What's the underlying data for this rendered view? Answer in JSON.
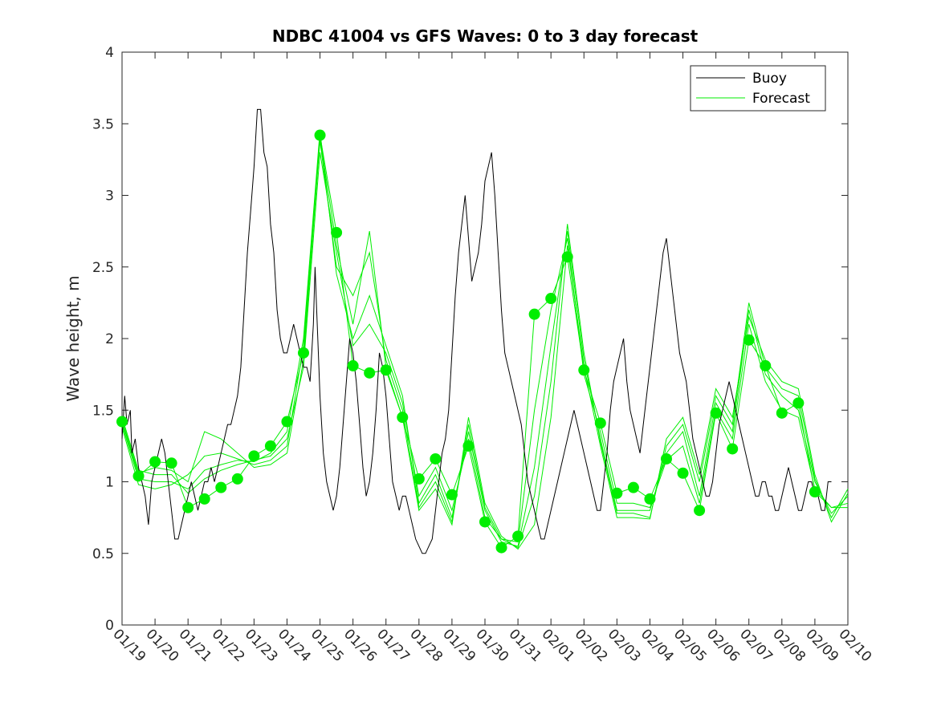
{
  "chart_data": {
    "type": "line",
    "title": "NDBC 41004 vs GFS Waves: 0 to 3 day forecast",
    "xlabel": "",
    "ylabel": "Wave height, m",
    "ylim": [
      0,
      4
    ],
    "xlim": [
      0,
      22
    ],
    "yticks": [
      0,
      0.5,
      1,
      1.5,
      2,
      2.5,
      3,
      3.5,
      4
    ],
    "ytick_labels": [
      "0",
      "0.5",
      "1",
      "1.5",
      "2",
      "2.5",
      "3",
      "3.5",
      "4"
    ],
    "xtick_labels": [
      "01/19",
      "01/20",
      "01/21",
      "01/22",
      "01/23",
      "01/24",
      "01/25",
      "01/26",
      "01/27",
      "01/28",
      "01/29",
      "01/30",
      "01/31",
      "02/01",
      "02/02",
      "02/03",
      "02/04",
      "02/05",
      "02/06",
      "02/07",
      "02/08",
      "02/09",
      "02/10"
    ],
    "legend": {
      "position": "top-right",
      "entries": [
        {
          "label": "Buoy",
          "color": "#000000"
        },
        {
          "label": "Forecast",
          "color": "#00ee00"
        }
      ]
    },
    "colors": {
      "buoy": "#000000",
      "forecast": "#00ee00",
      "marker": "#00ee00"
    },
    "buoy": {
      "x": [
        0,
        0.08,
        0.15,
        0.25,
        0.3,
        0.4,
        0.5,
        0.6,
        0.7,
        0.8,
        0.9,
        1.0,
        1.1,
        1.2,
        1.3,
        1.4,
        1.5,
        1.6,
        1.7,
        1.8,
        1.9,
        2.0,
        2.1,
        2.2,
        2.3,
        2.4,
        2.5,
        2.6,
        2.7,
        2.8,
        2.9,
        3.0,
        3.1,
        3.2,
        3.3,
        3.4,
        3.5,
        3.6,
        3.7,
        3.8,
        3.9,
        4.0,
        4.1,
        4.2,
        4.3,
        4.4,
        4.5,
        4.6,
        4.7,
        4.8,
        4.9,
        5.0,
        5.1,
        5.2,
        5.3,
        5.4,
        5.5,
        5.6,
        5.7,
        5.8,
        5.85,
        5.9,
        5.95,
        6.0,
        6.05,
        6.1,
        6.2,
        6.3,
        6.4,
        6.5,
        6.6,
        6.7,
        6.8,
        6.9,
        7.0,
        7.1,
        7.2,
        7.3,
        7.4,
        7.5,
        7.6,
        7.7,
        7.8,
        7.9,
        8.0,
        8.1,
        8.2,
        8.3,
        8.4,
        8.5,
        8.6,
        8.7,
        8.8,
        8.9,
        9.0,
        9.1,
        9.2,
        9.3,
        9.4,
        9.5,
        9.6,
        9.7,
        9.8,
        9.9,
        10.0,
        10.1,
        10.2,
        10.3,
        10.4,
        10.5,
        10.6,
        10.7,
        10.8,
        10.9,
        11.0,
        11.1,
        11.2,
        11.3,
        11.4,
        11.5,
        11.6,
        11.7,
        11.8,
        11.9,
        12.0,
        12.1,
        12.2,
        12.3,
        12.4,
        12.5,
        12.6,
        12.7,
        12.8,
        12.9,
        13.0,
        13.1,
        13.2,
        13.3,
        13.4,
        13.5,
        13.6,
        13.7,
        13.8,
        13.9,
        14.0,
        14.1,
        14.2,
        14.3,
        14.4,
        14.5,
        14.6,
        14.7,
        14.8,
        14.9,
        15.0,
        15.1,
        15.2,
        15.3,
        15.4,
        15.5,
        15.6,
        15.7,
        15.8,
        15.9,
        16.0,
        16.1,
        16.2,
        16.3,
        16.4,
        16.5,
        16.6,
        16.7,
        16.8,
        16.9,
        17.0,
        17.1,
        17.2,
        17.3,
        17.4,
        17.5,
        17.6,
        17.7,
        17.8,
        17.9,
        18.0,
        18.1,
        18.2,
        18.3,
        18.4,
        18.5,
        18.6,
        18.7,
        18.8,
        18.9,
        19.0,
        19.1,
        19.2,
        19.3,
        19.4,
        19.5,
        19.6,
        19.7,
        19.8,
        19.9,
        20.0,
        20.1,
        20.2,
        20.3,
        20.4,
        20.5,
        20.6,
        20.7,
        20.8,
        20.9,
        21.0,
        21.1,
        21.2,
        21.3,
        21.4,
        21.5
      ],
      "y": [
        1.3,
        1.6,
        1.4,
        1.5,
        1.2,
        1.3,
        1.1,
        1.0,
        0.9,
        0.7,
        1.0,
        1.1,
        1.2,
        1.3,
        1.2,
        1.0,
        0.8,
        0.6,
        0.6,
        0.7,
        0.8,
        0.9,
        1.0,
        0.9,
        0.8,
        0.9,
        1.0,
        1.0,
        1.1,
        1.0,
        1.1,
        1.2,
        1.3,
        1.4,
        1.4,
        1.5,
        1.6,
        1.8,
        2.2,
        2.6,
        2.9,
        3.2,
        3.6,
        3.6,
        3.3,
        3.2,
        2.8,
        2.6,
        2.2,
        2.0,
        1.9,
        1.9,
        2.0,
        2.1,
        2.0,
        1.9,
        1.8,
        1.8,
        1.7,
        2.1,
        2.5,
        2.2,
        1.9,
        1.6,
        1.4,
        1.2,
        1.0,
        0.9,
        0.8,
        0.9,
        1.1,
        1.4,
        1.7,
        2.0,
        1.9,
        1.7,
        1.4,
        1.1,
        0.9,
        1.0,
        1.2,
        1.5,
        1.9,
        1.8,
        1.6,
        1.3,
        1.0,
        0.9,
        0.8,
        0.9,
        0.9,
        0.8,
        0.7,
        0.6,
        0.55,
        0.5,
        0.5,
        0.55,
        0.6,
        0.8,
        1.0,
        1.2,
        1.3,
        1.5,
        1.9,
        2.3,
        2.6,
        2.8,
        3.0,
        2.7,
        2.4,
        2.5,
        2.6,
        2.8,
        3.1,
        3.2,
        3.3,
        3.0,
        2.6,
        2.2,
        1.9,
        1.8,
        1.7,
        1.6,
        1.5,
        1.4,
        1.2,
        1.0,
        0.9,
        0.8,
        0.7,
        0.6,
        0.6,
        0.7,
        0.8,
        0.9,
        1.0,
        1.1,
        1.2,
        1.3,
        1.4,
        1.5,
        1.4,
        1.3,
        1.2,
        1.1,
        1.0,
        0.9,
        0.8,
        0.8,
        1.0,
        1.2,
        1.5,
        1.7,
        1.8,
        1.9,
        2.0,
        1.7,
        1.5,
        1.4,
        1.3,
        1.2,
        1.4,
        1.6,
        1.8,
        2.0,
        2.2,
        2.4,
        2.6,
        2.7,
        2.5,
        2.3,
        2.1,
        1.9,
        1.8,
        1.7,
        1.5,
        1.3,
        1.2,
        1.1,
        1.0,
        0.9,
        0.9,
        1.0,
        1.2,
        1.4,
        1.5,
        1.6,
        1.7,
        1.6,
        1.5,
        1.4,
        1.3,
        1.2,
        1.1,
        1.0,
        0.9,
        0.9,
        1.0,
        1.0,
        0.9,
        0.9,
        0.8,
        0.8,
        0.9,
        1.0,
        1.1,
        1.0,
        0.9,
        0.8,
        0.8,
        0.9,
        1.0,
        1.0,
        0.9,
        0.9,
        0.8,
        0.8,
        1.0,
        1.0
      ]
    },
    "forecast_runs": [
      {
        "name": "run-1",
        "x": [
          0,
          0.5,
          1,
          1.5,
          2,
          2.5,
          3,
          3.5,
          4,
          4.5,
          5,
          5.5,
          6,
          6.5,
          7,
          7.5,
          8,
          8.5,
          9,
          9.5,
          10,
          10.5,
          11,
          11.5,
          12,
          12.5,
          13,
          13.5,
          14,
          14.5,
          15,
          15.5,
          16,
          16.5,
          17,
          17.5,
          18,
          18.5,
          19,
          19.5,
          20,
          20.5,
          21,
          21.5,
          22
        ],
        "y": [
          1.42,
          1.04,
          1.14,
          1.13,
          0.82,
          0.88,
          0.96,
          1.02,
          1.18,
          1.25,
          1.42,
          1.9,
          3.42,
          2.74,
          1.81,
          1.76,
          1.78,
          1.45,
          1.02,
          1.16,
          0.91,
          1.25,
          0.72,
          0.54,
          0.62,
          2.17,
          2.28,
          2.57,
          1.78,
          1.41,
          0.92,
          0.96,
          0.88,
          1.16,
          1.06,
          0.8,
          1.48,
          1.23,
          1.99,
          1.81,
          1.48,
          1.55,
          0.93,
          0.82,
          0.82
        ]
      },
      {
        "name": "run-2",
        "x": [
          0,
          0.5,
          1,
          1.5,
          2,
          2.5,
          3,
          3.5,
          4,
          4.5,
          5,
          5.5,
          6,
          6.5,
          7,
          7.5,
          8,
          8.5,
          9,
          9.5,
          10,
          10.5,
          11,
          11.5,
          12,
          12.5,
          13,
          13.5,
          14,
          14.5,
          15,
          15.5,
          16,
          16.5,
          17,
          17.5,
          18,
          18.5,
          19,
          19.5,
          20,
          20.5,
          21,
          21.5,
          22
        ],
        "y": [
          1.45,
          1.08,
          1.05,
          1.05,
          0.92,
          1.02,
          1.08,
          1.12,
          1.15,
          1.18,
          1.3,
          1.8,
          3.3,
          2.6,
          1.95,
          2.1,
          1.9,
          1.55,
          0.9,
          1.1,
          0.8,
          1.3,
          0.75,
          0.6,
          0.58,
          1.5,
          2.2,
          2.7,
          1.75,
          1.35,
          0.85,
          0.85,
          0.82,
          1.15,
          1.25,
          0.85,
          1.5,
          1.3,
          2.1,
          1.7,
          1.5,
          1.45,
          0.95,
          0.82,
          0.85
        ]
      },
      {
        "name": "run-3",
        "x": [
          0,
          0.5,
          1,
          1.5,
          2,
          2.5,
          3,
          3.5,
          4,
          4.5,
          5,
          5.5,
          6,
          6.5,
          7,
          7.5,
          8,
          8.5,
          9,
          9.5,
          10,
          10.5,
          11,
          11.5,
          12,
          12.5,
          13,
          13.5,
          14,
          14.5,
          15,
          15.5,
          16,
          16.5,
          17,
          17.5,
          18,
          18.5,
          19,
          19.5,
          20,
          20.5,
          21,
          21.5,
          22
        ],
        "y": [
          1.4,
          1.02,
          1.0,
          1.0,
          0.95,
          1.08,
          1.12,
          1.15,
          1.14,
          1.2,
          1.35,
          2.0,
          3.45,
          2.45,
          2.0,
          2.3,
          1.95,
          1.6,
          0.85,
          1.05,
          0.75,
          1.35,
          0.8,
          0.58,
          0.55,
          1.1,
          1.95,
          2.75,
          1.85,
          1.3,
          0.8,
          0.8,
          0.8,
          1.2,
          1.35,
          0.9,
          1.55,
          1.35,
          2.2,
          1.75,
          1.6,
          1.5,
          1.0,
          0.78,
          0.9
        ]
      },
      {
        "name": "run-4",
        "x": [
          0,
          0.5,
          1,
          1.5,
          2,
          2.5,
          3,
          3.5,
          4,
          4.5,
          5,
          5.5,
          6,
          6.5,
          7,
          7.5,
          8,
          8.5,
          9,
          9.5,
          10,
          10.5,
          11,
          11.5,
          12,
          12.5,
          13,
          13.5,
          14,
          14.5,
          15,
          15.5,
          16,
          16.5,
          17,
          17.5,
          18,
          18.5,
          19,
          19.5,
          20,
          20.5,
          21,
          21.5,
          22
        ],
        "y": [
          1.38,
          0.98,
          0.95,
          0.98,
          1.05,
          1.18,
          1.2,
          1.16,
          1.12,
          1.15,
          1.25,
          1.95,
          3.38,
          2.5,
          2.3,
          2.6,
          1.85,
          1.5,
          0.82,
          1.0,
          0.72,
          1.4,
          0.82,
          0.6,
          0.54,
          0.9,
          1.7,
          2.8,
          1.9,
          1.28,
          0.78,
          0.78,
          0.75,
          1.25,
          1.4,
          1.0,
          1.6,
          1.4,
          2.25,
          1.8,
          1.65,
          1.6,
          1.02,
          0.75,
          0.95
        ]
      },
      {
        "name": "run-5",
        "x": [
          0,
          0.5,
          1,
          1.5,
          2,
          2.5,
          3,
          3.5,
          4,
          4.5,
          5,
          5.5,
          6,
          6.5,
          7,
          7.5,
          8,
          8.5,
          9,
          9.5,
          10,
          10.5,
          11,
          11.5,
          12,
          12.5,
          13,
          13.5,
          14,
          14.5,
          15,
          15.5,
          16,
          16.5,
          17,
          17.5,
          18,
          18.5,
          19,
          19.5,
          20,
          20.5,
          21,
          21.5,
          22
        ],
        "y": [
          1.43,
          1.06,
          1.1,
          1.08,
          1.0,
          1.35,
          1.3,
          1.2,
          1.1,
          1.12,
          1.2,
          1.85,
          3.4,
          2.65,
          2.1,
          2.75,
          1.8,
          1.45,
          0.8,
          0.95,
          0.7,
          1.45,
          0.85,
          0.62,
          0.53,
          0.7,
          1.45,
          2.65,
          1.8,
          1.25,
          0.75,
          0.75,
          0.74,
          1.3,
          1.45,
          1.05,
          1.65,
          1.45,
          2.15,
          1.85,
          1.7,
          1.65,
          1.05,
          0.72,
          0.92
        ]
      }
    ],
    "markers": {
      "x": [
        0,
        0.5,
        1,
        1.5,
        2,
        2.5,
        3,
        3.5,
        4,
        4.5,
        5,
        5.5,
        6,
        6.5,
        7,
        7.5,
        8,
        8.5,
        9,
        9.5,
        10,
        10.5,
        11,
        11.5,
        12,
        12.5,
        13,
        13.5,
        14,
        14.5,
        15,
        15.5,
        16,
        16.5,
        17,
        17.5,
        18,
        18.5,
        19,
        19.5,
        20,
        20.5,
        21
      ],
      "y": [
        1.42,
        1.04,
        1.14,
        1.13,
        0.82,
        0.88,
        0.96,
        1.02,
        1.18,
        1.25,
        1.42,
        1.9,
        3.42,
        2.74,
        1.81,
        1.76,
        1.78,
        1.45,
        1.02,
        1.16,
        0.91,
        1.25,
        0.72,
        0.54,
        0.62,
        2.17,
        2.28,
        2.57,
        1.78,
        1.41,
        0.92,
        0.96,
        0.88,
        1.16,
        1.06,
        0.8,
        1.48,
        1.23,
        1.99,
        1.81,
        1.48,
        1.55,
        0.93
      ]
    }
  }
}
